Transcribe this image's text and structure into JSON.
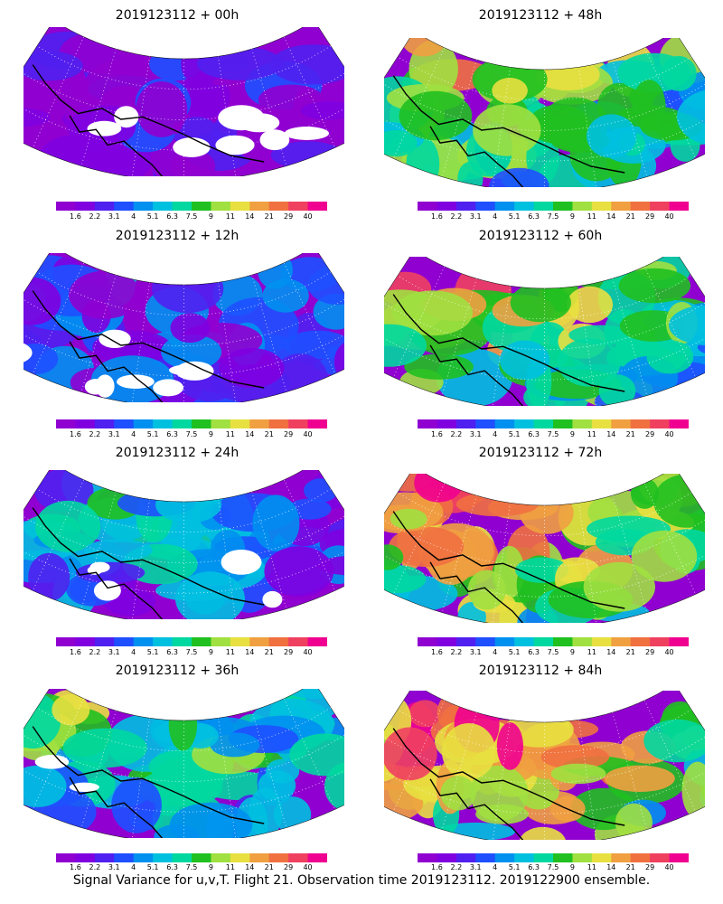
{
  "panels": [
    {
      "title": "2019123112 + 00h",
      "intensity": 0.1,
      "gaps": 0.55
    },
    {
      "title": "2019123112 + 12h",
      "intensity": 0.22,
      "gaps": 0.5
    },
    {
      "title": "2019123112 + 24h",
      "intensity": 0.35,
      "gaps": 0.3
    },
    {
      "title": "2019123112 + 36h",
      "intensity": 0.5,
      "gaps": 0.12
    },
    {
      "title": "2019123112 + 48h",
      "intensity": 0.62,
      "gaps": 0.0
    },
    {
      "title": "2019123112 + 60h",
      "intensity": 0.7,
      "gaps": 0.0
    },
    {
      "title": "2019123112 + 72h",
      "intensity": 0.78,
      "gaps": 0.0
    },
    {
      "title": "2019123112 + 84h",
      "intensity": 0.86,
      "gaps": 0.0
    }
  ],
  "colorbar": {
    "labels": [
      "1.6",
      "2.2",
      "3.1",
      "4",
      "5.1",
      "6.3",
      "7.5",
      "9",
      "11",
      "14",
      "21",
      "29",
      "40"
    ],
    "colors": [
      "#9000d0",
      "#8000e0",
      "#5020f0",
      "#1e50ff",
      "#0090f0",
      "#00c0e0",
      "#00d8a0",
      "#20c020",
      "#a0e040",
      "#e8e040",
      "#f0a040",
      "#f07040",
      "#f04060",
      "#f00090"
    ]
  },
  "caption": "Signal Variance for u,v,T. Flight 21. Observation time 2019123112. 2019122900 ensemble."
}
